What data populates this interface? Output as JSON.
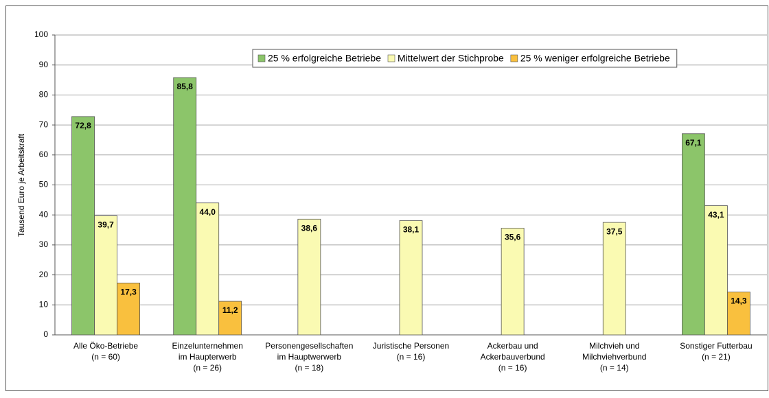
{
  "chart_data": {
    "type": "bar",
    "y_label": "Tausend Euro je Arbeitskraft",
    "categories": [
      [
        "Alle Öko-Betriebe",
        "(n = 60)"
      ],
      [
        "Einzelunternehmen",
        "im Haupterwerb",
        "(n = 26)"
      ],
      [
        "Personengesellschaften",
        "im Hauptwerwerb",
        "(n = 18)"
      ],
      [
        "Juristische Personen",
        "(n = 16)"
      ],
      [
        "Ackerbau und",
        "Ackerbauverbund",
        "(n = 16)"
      ],
      [
        "Milchvieh und",
        "Milchviehverbund",
        "(n = 14)"
      ],
      [
        "Sonstiger Futterbau",
        "(n = 21)"
      ]
    ],
    "series": [
      {
        "name": "25 % erfolgreiche Betriebe",
        "color": "#8cc56a",
        "values": [
          72.8,
          85.8,
          null,
          null,
          null,
          null,
          67.1
        ],
        "value_labels": [
          "72,8",
          "85,8",
          null,
          null,
          null,
          null,
          "67,1"
        ]
      },
      {
        "name": "Mittelwert der Stichprobe",
        "color": "#fafab2",
        "values": [
          39.7,
          44.0,
          38.6,
          38.1,
          35.6,
          37.5,
          43.1
        ],
        "value_labels": [
          "39,7",
          "44,0",
          "38,6",
          "38,1",
          "35,6",
          "37,5",
          "43,1"
        ]
      },
      {
        "name": "25 % weniger erfolgreiche Betriebe",
        "color": "#f9c03e",
        "values": [
          17.3,
          11.2,
          null,
          null,
          null,
          null,
          14.3
        ],
        "value_labels": [
          "17,3",
          "11,2",
          null,
          null,
          null,
          null,
          "14,3"
        ]
      }
    ],
    "ylim": [
      0,
      100
    ],
    "yticks": [
      0,
      10,
      20,
      30,
      40,
      50,
      60,
      70,
      80,
      90,
      100
    ],
    "grid": true
  }
}
